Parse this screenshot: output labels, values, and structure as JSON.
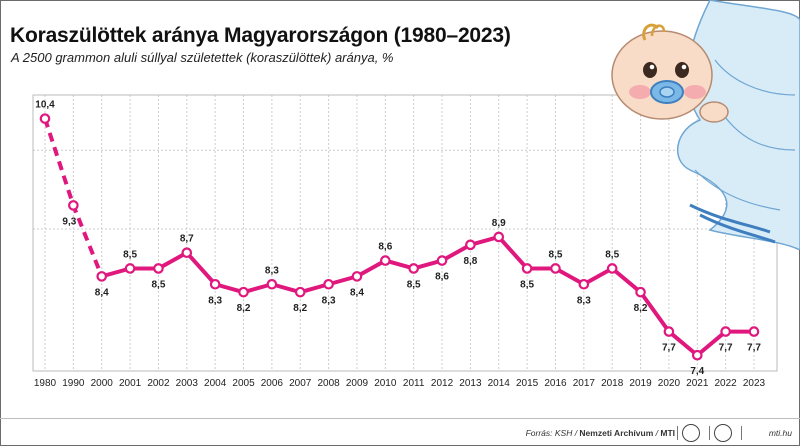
{
  "title": "Koraszülöttek aránya Magyarországon (1980–2023)",
  "subtitle": "A 2500 grammon aluli súllyal születettek (koraszülöttek) aránya, %",
  "footer": {
    "source_prefix": "Forrás: KSH / ",
    "source_archive": "Nemzeti Archívum",
    "source_sep": " / ",
    "source_mti": "MTI",
    "website": "mti.hu"
  },
  "colors": {
    "line": "#e0187e",
    "grid": "#cccccc",
    "marker_fill": "#ffffff"
  },
  "chart_data": {
    "type": "line",
    "title": "Koraszülöttek aránya Magyarországon (1980–2023)",
    "categories": [
      "1980",
      "1990",
      "2000",
      "2001",
      "2002",
      "2003",
      "2004",
      "2005",
      "2006",
      "2007",
      "2008",
      "2009",
      "2010",
      "2011",
      "2012",
      "2013",
      "2014",
      "2015",
      "2016",
      "2017",
      "2018",
      "2019",
      "2020",
      "2021",
      "2022",
      "2023"
    ],
    "series": [
      {
        "values": [
          10.4,
          9.3,
          8.4,
          8.5,
          8.5,
          8.7,
          8.3,
          8.2,
          8.3,
          8.2,
          8.3,
          8.4,
          8.6,
          8.5,
          8.6,
          8.8,
          8.9,
          8.5,
          8.5,
          8.3,
          8.5,
          8.2,
          7.7,
          7.4,
          7.7,
          7.7
        ],
        "labels": [
          "10,4",
          "9,3",
          "8,4",
          "8,5",
          "8,5",
          "8,7",
          "8,3",
          "8,2",
          "8,3",
          "8,2",
          "8,3",
          "8,4",
          "8,6",
          "8,5",
          "8,6",
          "8,8",
          "8,9",
          "8,5",
          "8,5",
          "8,3",
          "8,5",
          "8,2",
          "7,7",
          "7,4",
          "7,7",
          "7,7"
        ],
        "dashed_until_index": 2
      }
    ],
    "ylim": [
      7.2,
      10.7
    ],
    "grid": true,
    "y_ticks_shown": false
  }
}
